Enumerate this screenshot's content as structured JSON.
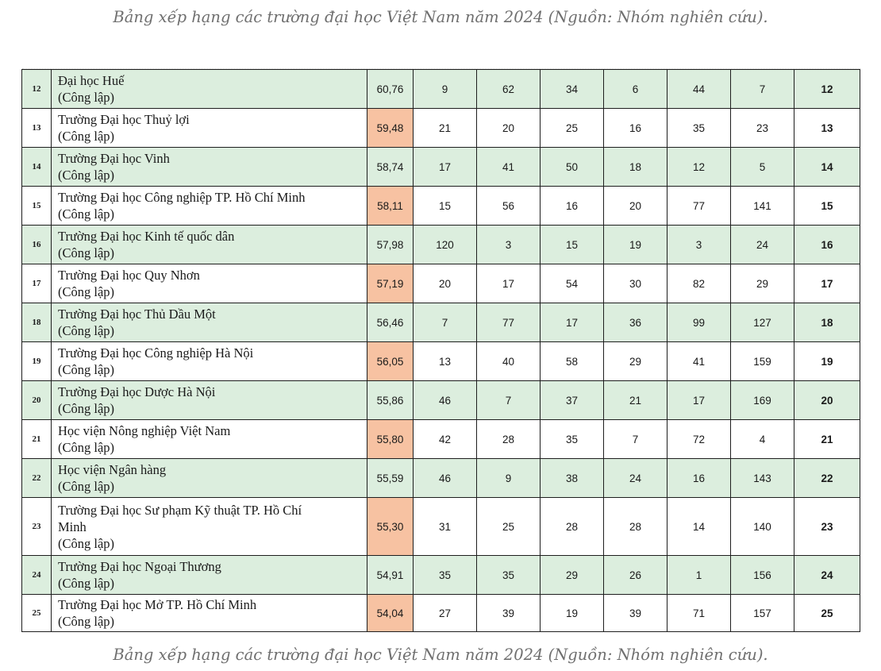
{
  "captions": {
    "top": "Bảng xếp hạng các trường đại học Việt Nam năm 2024 (Nguồn: Nhóm nghiên cứu).",
    "bottom": "Bảng xếp hạng các trường đại học Việt Nam năm 2024 (Nguồn: Nhóm nghiên cứu)."
  },
  "colors": {
    "row_green": "#dceede",
    "score_highlight": "#f7c2a2",
    "caption": "#6f6f6f"
  },
  "rows": [
    {
      "stt": "12",
      "name": [
        "Đại học Huế",
        "(Công lập)"
      ],
      "score": "60,76",
      "c1": "9",
      "c2": "62",
      "c3": "34",
      "c4": "6",
      "c5": "44",
      "c6": "7",
      "rank": "12",
      "row_color": "green",
      "score_highlight": false
    },
    {
      "stt": "13",
      "name": [
        "Trường Đại học Thuỷ lợi",
        "(Công lập)"
      ],
      "score": "59,48",
      "c1": "21",
      "c2": "20",
      "c3": "25",
      "c4": "16",
      "c5": "35",
      "c6": "23",
      "rank": "13",
      "row_color": "white",
      "score_highlight": true
    },
    {
      "stt": "14",
      "name": [
        "Trường Đại học Vinh",
        "(Công lập)"
      ],
      "score": "58,74",
      "c1": "17",
      "c2": "41",
      "c3": "50",
      "c4": "18",
      "c5": "12",
      "c6": "5",
      "rank": "14",
      "row_color": "green",
      "score_highlight": false
    },
    {
      "stt": "15",
      "name": [
        "Trường Đại học Công nghiệp TP. Hồ Chí Minh",
        "(Công lập)"
      ],
      "score": "58,11",
      "c1": "15",
      "c2": "56",
      "c3": "16",
      "c4": "20",
      "c5": "77",
      "c6": "141",
      "rank": "15",
      "row_color": "white",
      "score_highlight": true
    },
    {
      "stt": "16",
      "name": [
        "Trường Đại học Kinh tế quốc dân",
        "(Công lập)"
      ],
      "score": "57,98",
      "c1": "120",
      "c2": "3",
      "c3": "15",
      "c4": "19",
      "c5": "3",
      "c6": "24",
      "rank": "16",
      "row_color": "green",
      "score_highlight": false
    },
    {
      "stt": "17",
      "name": [
        "Trường Đại học Quy Nhơn",
        "(Công lập)"
      ],
      "score": "57,19",
      "c1": "20",
      "c2": "17",
      "c3": "54",
      "c4": "30",
      "c5": "82",
      "c6": "29",
      "rank": "17",
      "row_color": "white",
      "score_highlight": true
    },
    {
      "stt": "18",
      "name": [
        "Trường Đại học Thủ Dầu Một",
        "(Công lập)"
      ],
      "score": "56,46",
      "c1": "7",
      "c2": "77",
      "c3": "17",
      "c4": "36",
      "c5": "99",
      "c6": "127",
      "rank": "18",
      "row_color": "green",
      "score_highlight": false
    },
    {
      "stt": "19",
      "name": [
        "Trường Đại học Công nghiệp Hà Nội",
        "(Công lập)"
      ],
      "score": "56,05",
      "c1": "13",
      "c2": "40",
      "c3": "58",
      "c4": "29",
      "c5": "41",
      "c6": "159",
      "rank": "19",
      "row_color": "white",
      "score_highlight": true
    },
    {
      "stt": "20",
      "name": [
        "Trường Đại học Dược Hà Nội",
        "(Công lập)"
      ],
      "score": "55,86",
      "c1": "46",
      "c2": "7",
      "c3": "37",
      "c4": "21",
      "c5": "17",
      "c6": "169",
      "rank": "20",
      "row_color": "green",
      "score_highlight": false
    },
    {
      "stt": "21",
      "name": [
        "Học viện Nông nghiệp Việt Nam",
        "(Công lập)"
      ],
      "score": "55,80",
      "c1": "42",
      "c2": "28",
      "c3": "35",
      "c4": "7",
      "c5": "72",
      "c6": "4",
      "rank": "21",
      "row_color": "white",
      "score_highlight": true
    },
    {
      "stt": "22",
      "name": [
        "Học viện Ngân hàng",
        "(Công lập)"
      ],
      "score": "55,59",
      "c1": "46",
      "c2": "9",
      "c3": "38",
      "c4": "24",
      "c5": "16",
      "c6": "143",
      "rank": "22",
      "row_color": "green",
      "score_highlight": false
    },
    {
      "stt": "23",
      "name": [
        "Trường Đại học Sư phạm Kỹ thuật TP. Hồ Chí",
        "Minh",
        "(Công lập)"
      ],
      "score": "55,30",
      "c1": "31",
      "c2": "25",
      "c3": "28",
      "c4": "28",
      "c5": "14",
      "c6": "140",
      "rank": "23",
      "row_color": "white",
      "score_highlight": true
    },
    {
      "stt": "24",
      "name": [
        "Trường Đại học Ngoại Thương",
        "(Công lập)"
      ],
      "score": "54,91",
      "c1": "35",
      "c2": "35",
      "c3": "29",
      "c4": "26",
      "c5": "1",
      "c6": "156",
      "rank": "24",
      "row_color": "green",
      "score_highlight": false
    },
    {
      "stt": "25",
      "name": [
        "Trường Đại học Mở TP. Hồ Chí Minh",
        "(Công lập)"
      ],
      "score": "54,04",
      "c1": "27",
      "c2": "39",
      "c3": "19",
      "c4": "39",
      "c5": "71",
      "c6": "157",
      "rank": "25",
      "row_color": "white",
      "score_highlight": true
    }
  ]
}
